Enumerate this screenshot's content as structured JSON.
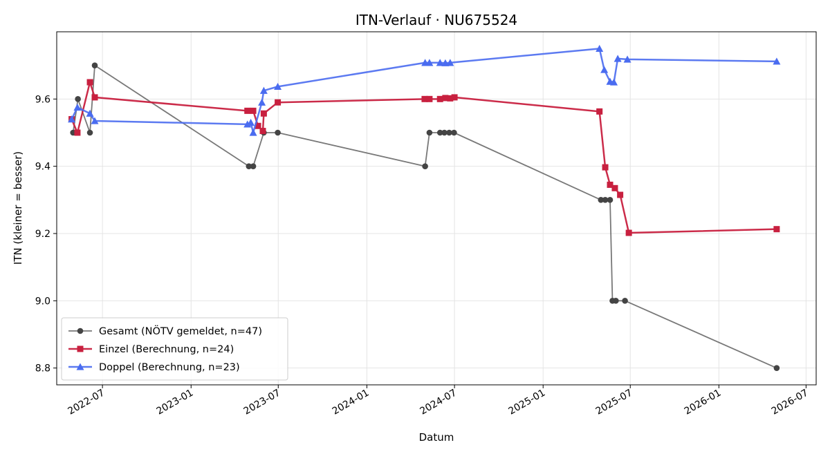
{
  "chart_data": {
    "type": "line",
    "title": "ITN-Verlauf · NU675524",
    "xlabel": "Datum",
    "ylabel": "ITN  (kleiner = besser)",
    "x_type": "date",
    "xlim": [
      "2022-03-28",
      "2026-07-22"
    ],
    "ylim": [
      8.75,
      9.8
    ],
    "x_ticks": [
      "2022-07-01",
      "2023-01-01",
      "2023-07-01",
      "2024-01-01",
      "2024-07-01",
      "2025-01-01",
      "2025-07-01",
      "2026-01-01",
      "2026-07-01"
    ],
    "x_tick_labels": [
      "2022-07",
      "2023-01",
      "2023-07",
      "2024-01",
      "2024-07",
      "2025-01",
      "2025-07",
      "2026-01",
      "2026-07"
    ],
    "y_ticks": [
      8.8,
      9.0,
      9.2,
      9.4,
      9.6
    ],
    "y_tick_labels": [
      "8.8",
      "9.0",
      "9.2",
      "9.4",
      "9.6"
    ],
    "grid": true,
    "legend_position": "lower-left",
    "series": [
      {
        "name": "Gesamt (NÖTV gemeldet, n=47)",
        "color": "#444444",
        "marker": "circle",
        "points": [
          [
            "2022-05-01",
            9.5
          ],
          [
            "2022-05-11",
            9.6
          ],
          [
            "2022-06-05",
            9.5
          ],
          [
            "2022-06-15",
            9.7
          ],
          [
            "2023-05-01",
            9.4
          ],
          [
            "2023-05-10",
            9.4
          ],
          [
            "2023-06-01",
            9.5
          ],
          [
            "2023-06-30",
            9.5
          ],
          [
            "2024-05-01",
            9.4
          ],
          [
            "2024-05-10",
            9.5
          ],
          [
            "2024-06-01",
            9.5
          ],
          [
            "2024-06-10",
            9.5
          ],
          [
            "2024-06-20",
            9.5
          ],
          [
            "2024-06-30",
            9.5
          ],
          [
            "2025-05-01",
            9.3
          ],
          [
            "2025-05-10",
            9.3
          ],
          [
            "2025-05-20",
            9.3
          ],
          [
            "2025-05-25",
            9.0
          ],
          [
            "2025-06-01",
            9.0
          ],
          [
            "2025-06-20",
            9.0
          ],
          [
            "2026-05-01",
            8.8
          ]
        ]
      },
      {
        "name": "Einzel (Berechnung, n=24)",
        "color": "#c8203f",
        "marker": "square",
        "points": [
          [
            "2022-04-28",
            9.54
          ],
          [
            "2022-05-10",
            9.5
          ],
          [
            "2022-06-05",
            9.65
          ],
          [
            "2022-06-15",
            9.605
          ],
          [
            "2023-04-28",
            9.565
          ],
          [
            "2023-05-10",
            9.565
          ],
          [
            "2023-05-20",
            9.52
          ],
          [
            "2023-05-30",
            9.505
          ],
          [
            "2023-06-01",
            9.557
          ],
          [
            "2023-06-30",
            9.59
          ],
          [
            "2024-04-30",
            9.6
          ],
          [
            "2024-05-10",
            9.6
          ],
          [
            "2024-06-01",
            9.6
          ],
          [
            "2024-06-12",
            9.603
          ],
          [
            "2024-06-22",
            9.602
          ],
          [
            "2024-07-01",
            9.605
          ],
          [
            "2025-04-28",
            9.563
          ],
          [
            "2025-05-10",
            9.397
          ],
          [
            "2025-05-20",
            9.345
          ],
          [
            "2025-05-30",
            9.335
          ],
          [
            "2025-06-10",
            9.315
          ],
          [
            "2025-06-28",
            9.202
          ],
          [
            "2026-05-01",
            9.213
          ]
        ]
      },
      {
        "name": "Doppel (Berechnung, n=23)",
        "color": "#4a6cf0",
        "marker": "triangle",
        "points": [
          [
            "2022-04-28",
            9.54
          ],
          [
            "2022-05-10",
            9.575
          ],
          [
            "2022-06-05",
            9.557
          ],
          [
            "2022-06-15",
            9.535
          ],
          [
            "2023-04-28",
            9.525
          ],
          [
            "2023-05-05",
            9.53
          ],
          [
            "2023-05-10",
            9.5
          ],
          [
            "2023-05-28",
            9.59
          ],
          [
            "2023-06-01",
            9.625
          ],
          [
            "2023-06-30",
            9.637
          ],
          [
            "2024-05-01",
            9.708
          ],
          [
            "2024-05-10",
            9.708
          ],
          [
            "2024-06-01",
            9.708
          ],
          [
            "2024-06-12",
            9.707
          ],
          [
            "2024-06-22",
            9.708
          ],
          [
            "2025-04-28",
            9.75
          ],
          [
            "2025-05-08",
            9.687
          ],
          [
            "2025-05-20",
            9.652
          ],
          [
            "2025-05-28",
            9.65
          ],
          [
            "2025-06-05",
            9.72
          ],
          [
            "2025-06-25",
            9.718
          ],
          [
            "2026-05-01",
            9.712
          ]
        ]
      }
    ]
  }
}
